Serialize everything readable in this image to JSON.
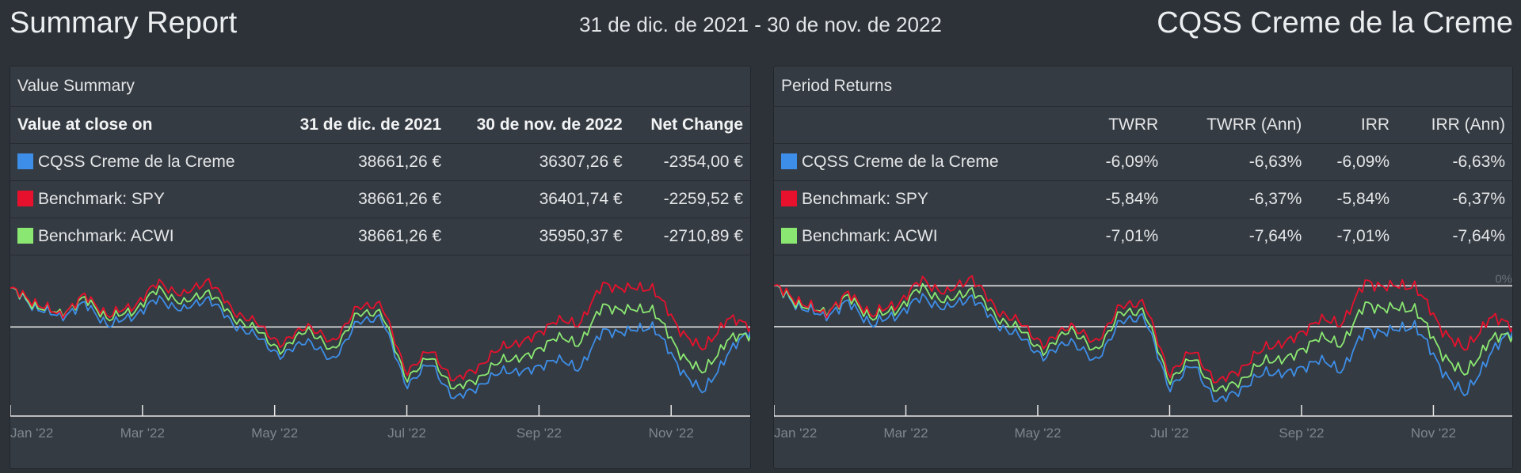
{
  "header": {
    "title": "Summary Report",
    "date_range": "31 de dic. de 2021 - 30 de nov. de 2022",
    "portfolio_name": "CQSS Creme de la Creme"
  },
  "colors": {
    "portfolio": "#3d8ee8",
    "spy": "#e8112d",
    "acwi": "#8ae872",
    "background": "#2c3238",
    "panel": "#353b42"
  },
  "value_summary": {
    "title": "Value Summary",
    "columns": [
      "Value at close on",
      "31 de dic. de 2021",
      "30 de nov. de 2022",
      "Net Change"
    ],
    "rows": [
      {
        "name": "CQSS Creme de la Creme",
        "color": "#3d8ee8",
        "start": "38661,26 €",
        "end": "36307,26 €",
        "change": "-2354,00 €"
      },
      {
        "name": "Benchmark: SPY",
        "color": "#e8112d",
        "start": "38661,26 €",
        "end": "36401,74 €",
        "change": "-2259,52 €"
      },
      {
        "name": "Benchmark: ACWI",
        "color": "#8ae872",
        "start": "38661,26 €",
        "end": "35950,37 €",
        "change": "-2710,89 €"
      }
    ]
  },
  "period_returns": {
    "title": "Period Returns",
    "columns": [
      "",
      "TWRR",
      "TWRR (Ann)",
      "IRR",
      "IRR (Ann)"
    ],
    "rows": [
      {
        "name": "CQSS Creme de la Creme",
        "color": "#3d8ee8",
        "twrr": "-6,09%",
        "twrr_ann": "-6,63%",
        "irr": "-6,09%",
        "irr_ann": "-6,63%"
      },
      {
        "name": "Benchmark: SPY",
        "color": "#e8112d",
        "twrr": "-5,84%",
        "twrr_ann": "-6,37%",
        "irr": "-5,84%",
        "irr_ann": "-6,37%"
      },
      {
        "name": "Benchmark: ACWI",
        "color": "#8ae872",
        "twrr": "-7,01%",
        "twrr_ann": "-7,64%",
        "irr": "-7,01%",
        "irr_ann": "-7,64%"
      }
    ]
  },
  "chart_data": [
    {
      "type": "line",
      "x_ticks": [
        "Jan '22",
        "Mar '22",
        "May '22",
        "Jul '22",
        "Sep '22",
        "Nov '22"
      ],
      "series": [
        {
          "name": "CQSS Creme de la Creme",
          "color": "#3d8ee8",
          "values": [
            38661,
            37500,
            36900,
            37700,
            36400,
            37000,
            38000,
            37300,
            38100,
            36500,
            35700,
            34500,
            35600,
            34200,
            36500,
            37000,
            32800,
            34100,
            31900,
            32800,
            33700,
            33600,
            34400,
            33800,
            36100,
            36000,
            36400,
            34000,
            32300,
            34600,
            36307
          ]
        },
        {
          "name": "Benchmark: SPY",
          "color": "#e8112d",
          "values": [
            38661,
            37800,
            37000,
            38200,
            37000,
            37600,
            39000,
            38200,
            39200,
            37300,
            36500,
            35200,
            36500,
            35300,
            37400,
            37800,
            33600,
            34900,
            33000,
            34000,
            35200,
            35500,
            36700,
            36500,
            38900,
            38600,
            38700,
            36300,
            34900,
            36800,
            36401
          ]
        },
        {
          "name": "Benchmark: ACWI",
          "color": "#8ae872",
          "values": [
            38661,
            37600,
            37100,
            38000,
            36800,
            37300,
            38600,
            37700,
            38500,
            36900,
            36100,
            34800,
            36300,
            34800,
            37000,
            37300,
            33200,
            34500,
            32500,
            33300,
            34400,
            34500,
            35700,
            35300,
            37600,
            37300,
            37400,
            34900,
            33500,
            35500,
            35950
          ]
        }
      ]
    },
    {
      "type": "line",
      "x_ticks": [
        "Jan '22",
        "Mar '22",
        "May '22",
        "Jul '22",
        "Sep '22",
        "Nov '22"
      ],
      "ylabel_marks": [
        "0%"
      ],
      "series": [
        {
          "name": "CQSS Creme de la Creme",
          "color": "#3d8ee8",
          "values": [
            0,
            -3.0,
            -4.6,
            -2.5,
            -5.8,
            -4.3,
            -1.7,
            -3.5,
            -1.5,
            -5.6,
            -7.7,
            -10.8,
            -7.9,
            -11.5,
            -5.6,
            -4.3,
            -15.2,
            -11.8,
            -17.5,
            -15.2,
            -12.8,
            -13.1,
            -11.0,
            -12.6,
            -6.6,
            -6.9,
            -5.8,
            -12.1,
            -16.5,
            -10.5,
            -6.09
          ]
        },
        {
          "name": "Benchmark: SPY",
          "color": "#e8112d",
          "values": [
            0,
            -2.2,
            -4.3,
            -1.2,
            -4.3,
            -2.7,
            0.9,
            -1.2,
            1.4,
            -3.5,
            -5.6,
            -9.0,
            -5.6,
            -8.7,
            -3.3,
            -2.2,
            -13.1,
            -9.7,
            -14.6,
            -12.1,
            -9.0,
            -8.2,
            -5.1,
            -5.6,
            0.6,
            -0.2,
            0.1,
            -6.1,
            -9.7,
            -4.8,
            -5.84
          ]
        },
        {
          "name": "Benchmark: ACWI",
          "color": "#8ae872",
          "values": [
            0,
            -2.7,
            -4.0,
            -1.7,
            -4.8,
            -3.5,
            -0.2,
            -2.5,
            -0.4,
            -4.6,
            -6.6,
            -10.0,
            -6.1,
            -10.0,
            -4.3,
            -3.5,
            -14.1,
            -10.8,
            -15.9,
            -13.9,
            -11.0,
            -10.8,
            -7.7,
            -8.7,
            -2.7,
            -3.5,
            -3.3,
            -9.7,
            -13.4,
            -8.2,
            -7.01
          ]
        }
      ]
    }
  ]
}
